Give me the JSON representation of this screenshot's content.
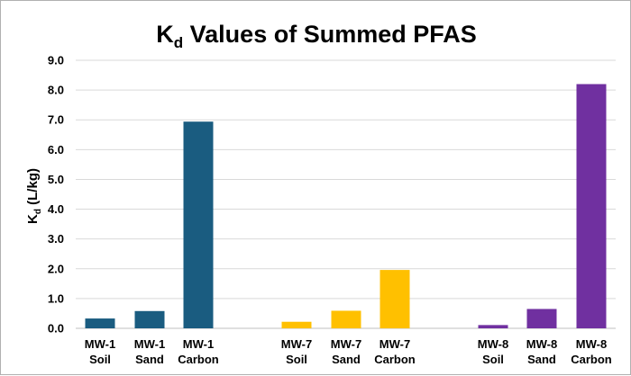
{
  "chart_data": {
    "type": "bar",
    "title": {
      "prefix": "K",
      "subscript": "d",
      "rest": " Values of Summed PFAS"
    },
    "ylabel": {
      "prefix": "K",
      "subscript": "d",
      "rest": " (L/kg)"
    },
    "xlabel": "",
    "ylim": [
      0,
      9
    ],
    "yticks": [
      "0.0",
      "1.0",
      "2.0",
      "3.0",
      "4.0",
      "5.0",
      "6.0",
      "7.0",
      "8.0",
      "9.0"
    ],
    "grid": true,
    "legend": "none",
    "groups": [
      {
        "color": "#1a5c80",
        "bars": [
          {
            "line1": "MW-1",
            "line2": "Soil",
            "value": 0.33
          },
          {
            "line1": "MW-1",
            "line2": "Sand",
            "value": 0.58
          },
          {
            "line1": "MW-1",
            "line2": "Carbon",
            "value": 6.94
          }
        ]
      },
      {
        "color": "#ffc000",
        "bars": [
          {
            "line1": "MW-7",
            "line2": "Soil",
            "value": 0.22
          },
          {
            "line1": "MW-7",
            "line2": "Sand",
            "value": 0.59
          },
          {
            "line1": "MW-7",
            "line2": "Carbon",
            "value": 1.96
          }
        ]
      },
      {
        "color": "#7030a0",
        "bars": [
          {
            "line1": "MW-8",
            "line2": "Soil",
            "value": 0.11
          },
          {
            "line1": "MW-8",
            "line2": "Sand",
            "value": 0.65
          },
          {
            "line1": "MW-8",
            "line2": "Carbon",
            "value": 8.2
          }
        ]
      }
    ]
  }
}
